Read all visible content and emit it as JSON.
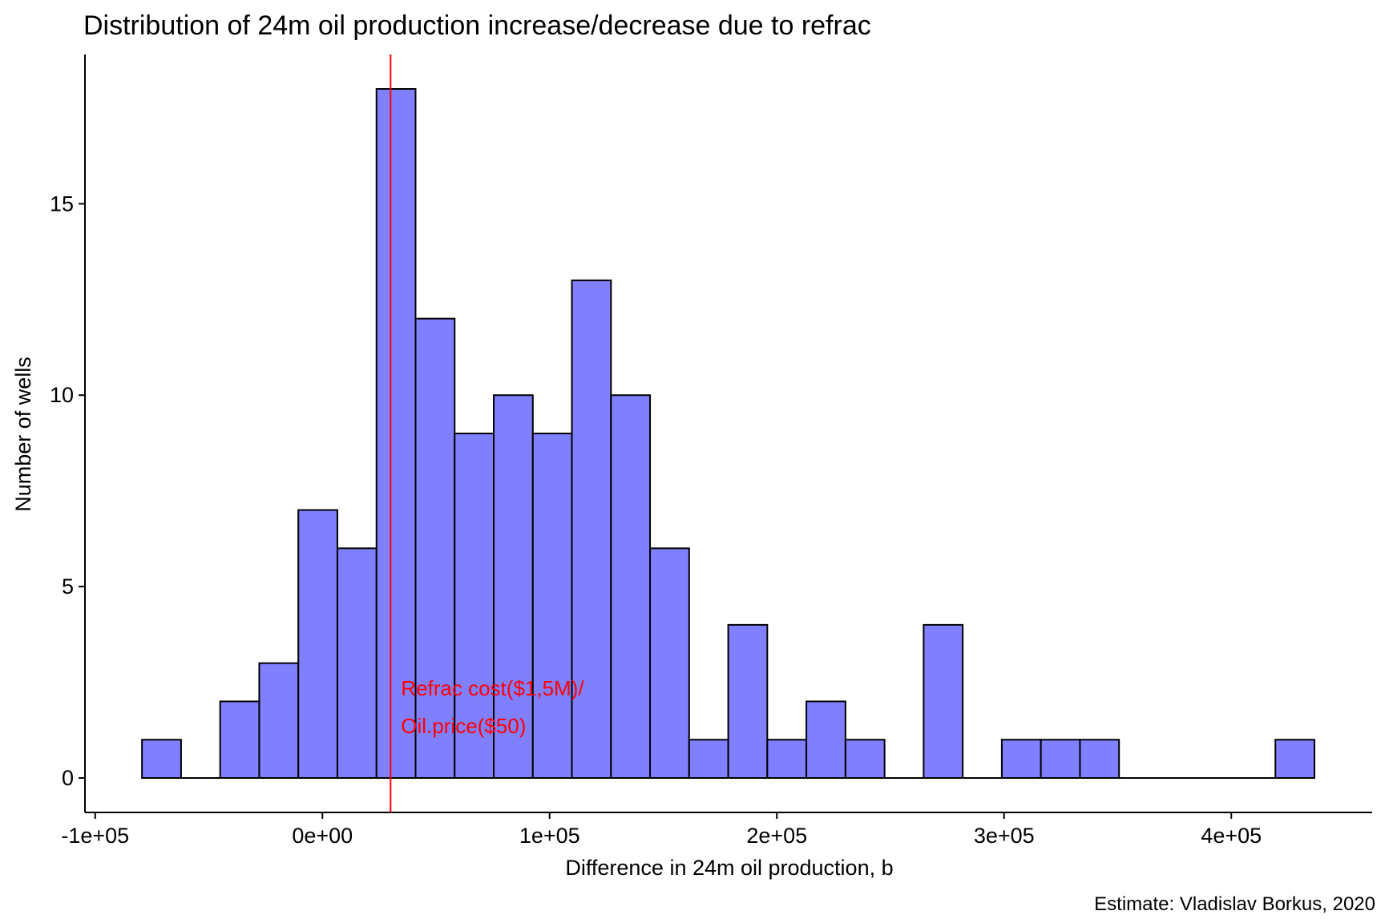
{
  "chart_data": {
    "type": "bar",
    "title": "Distribution of 24m oil production increase/decrease due to refrac",
    "xlabel": "Difference in 24m oil production, b",
    "ylabel": "Number of wells",
    "caption": "Estimate: Vladislav Borkus, 2020",
    "xlim": [
      -104500,
      462000
    ],
    "ylim": [
      -0.9,
      18.9
    ],
    "bin_width": 17200,
    "bins": [
      {
        "center": -70800,
        "count": 1
      },
      {
        "center": -53600,
        "count": 0
      },
      {
        "center": -36400,
        "count": 2
      },
      {
        "center": -19200,
        "count": 3
      },
      {
        "center": -2000,
        "count": 7
      },
      {
        "center": 15200,
        "count": 6
      },
      {
        "center": 32400,
        "count": 18
      },
      {
        "center": 49600,
        "count": 12
      },
      {
        "center": 66800,
        "count": 9
      },
      {
        "center": 84000,
        "count": 10
      },
      {
        "center": 101200,
        "count": 9
      },
      {
        "center": 118400,
        "count": 13
      },
      {
        "center": 135600,
        "count": 10
      },
      {
        "center": 152800,
        "count": 6
      },
      {
        "center": 170000,
        "count": 1
      },
      {
        "center": 187200,
        "count": 4
      },
      {
        "center": 204400,
        "count": 1
      },
      {
        "center": 221600,
        "count": 2
      },
      {
        "center": 238800,
        "count": 1
      },
      {
        "center": 256000,
        "count": 0
      },
      {
        "center": 273200,
        "count": 4
      },
      {
        "center": 290400,
        "count": 0
      },
      {
        "center": 307600,
        "count": 1
      },
      {
        "center": 324800,
        "count": 1
      },
      {
        "center": 342000,
        "count": 1
      },
      {
        "center": 359200,
        "count": 0
      },
      {
        "center": 376400,
        "count": 0
      },
      {
        "center": 393600,
        "count": 0
      },
      {
        "center": 410800,
        "count": 0
      },
      {
        "center": 428000,
        "count": 1
      }
    ],
    "x_ticks": [
      {
        "value": -100000,
        "label": "-1e+05"
      },
      {
        "value": 0,
        "label": "0e+00"
      },
      {
        "value": 100000,
        "label": "1e+05"
      },
      {
        "value": 200000,
        "label": "2e+05"
      },
      {
        "value": 300000,
        "label": "3e+05"
      },
      {
        "value": 400000,
        "label": "4e+05"
      }
    ],
    "y_ticks": [
      {
        "value": 0,
        "label": "0"
      },
      {
        "value": 5,
        "label": "5"
      },
      {
        "value": 10,
        "label": "10"
      },
      {
        "value": 15,
        "label": "15"
      }
    ],
    "reference_line": {
      "x": 30000,
      "color": "#ff0000",
      "label_lines": [
        "Refrac cost($1,5M)/",
        "Oil.price($50)"
      ]
    },
    "bar_fill": "#8080ff",
    "bar_stroke": "#000000",
    "grid": false,
    "legend": "none"
  }
}
